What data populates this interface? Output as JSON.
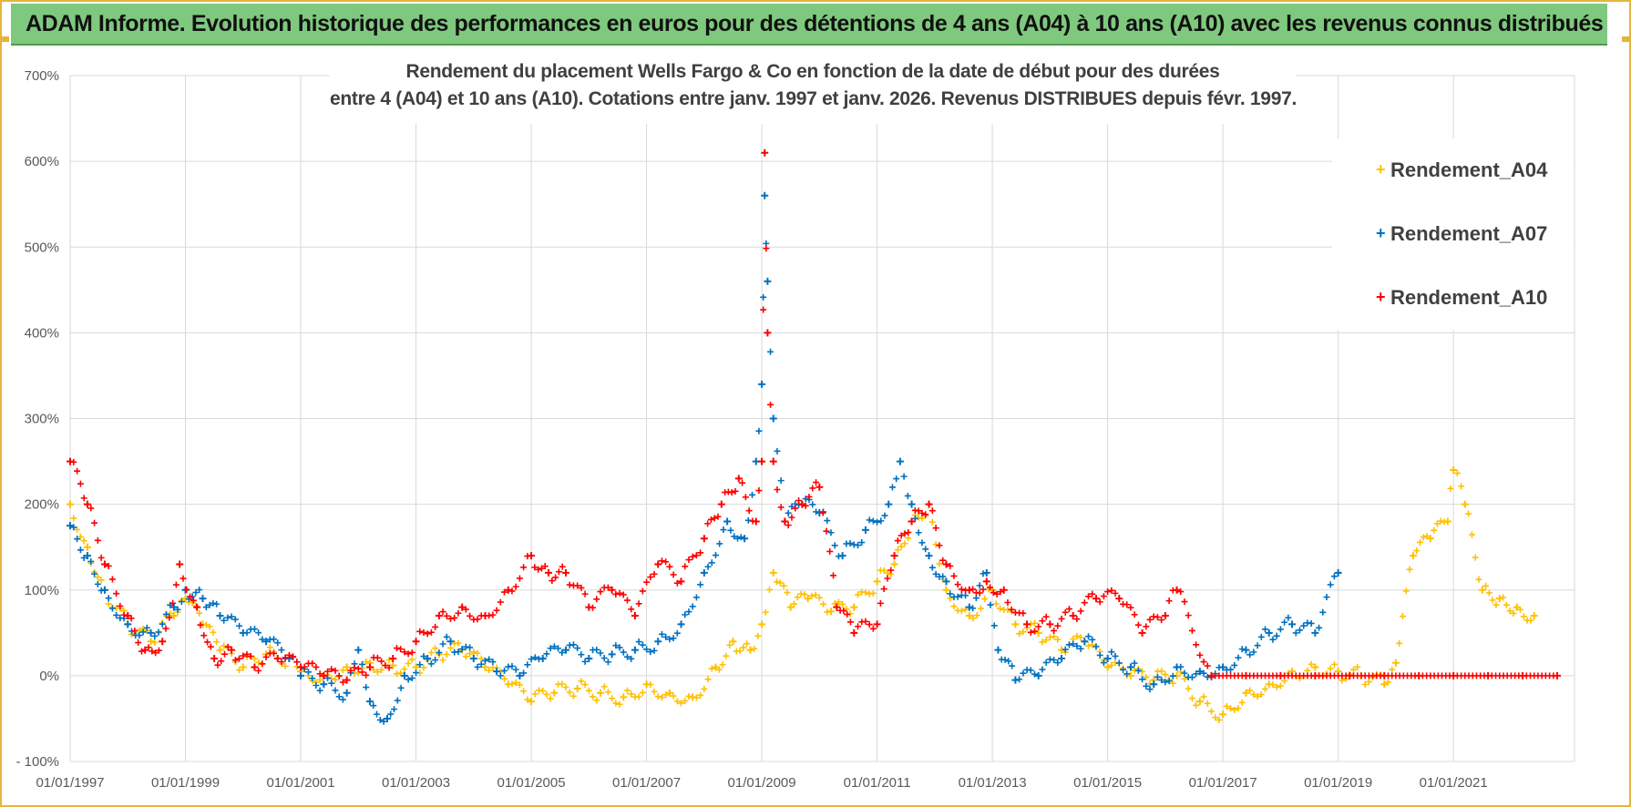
{
  "banner": {
    "title": "ADAM Informe. Evolution historique des performances en euros pour des détentions de 4 ans (A04) à 10 ans (A10) avec les revenus connus distribués"
  },
  "colors": {
    "banner_bg": "#7fc97f",
    "frame": "#e3b53c",
    "A04": "#ffc000",
    "A07": "#0070c0",
    "A10": "#ff0000"
  },
  "chart_data": {
    "type": "scatter",
    "title_line1": "Rendement du placement Wells Fargo & Co en fonction de la date de début pour des durées",
    "title_line2": "entre 4 (A04) et 10 ans (A10). Cotations entre janv. 1997 et janv. 2026. Revenus DISTRIBUES depuis févr. 1997.",
    "xlabel": "",
    "ylabel": "",
    "xlim": [
      1997,
      2023.1
    ],
    "ylim": [
      -100,
      700
    ],
    "ytick_values": [
      -100,
      0,
      100,
      200,
      300,
      400,
      500,
      600,
      700
    ],
    "ytick_labels": [
      "- 100%",
      "0%",
      "100%",
      "200%",
      "300%",
      "400%",
      "500%",
      "600%",
      "700%"
    ],
    "xtick_values": [
      1997,
      1999,
      2001,
      2003,
      2005,
      2007,
      2009,
      2011,
      2013,
      2015,
      2017,
      2019,
      2021
    ],
    "xtick_labels": [
      "01/01/1997",
      "01/01/1999",
      "01/01/2001",
      "01/01/2003",
      "01/01/2005",
      "01/01/2007",
      "01/01/2009",
      "01/01/2011",
      "01/01/2013",
      "01/01/2015",
      "01/01/2017",
      "01/01/2019",
      "01/01/2021"
    ],
    "grid": true,
    "legend_position": "top-right",
    "marker": "+",
    "series": [
      {
        "name": "Rendement_A04",
        "color": "#ffc000",
        "x": [
          1997.0,
          1997.3,
          1997.6,
          1998.0,
          1998.4,
          1998.8,
          1999.0,
          1999.3,
          1999.6,
          2000.0,
          2000.4,
          2000.8,
          2001.0,
          2001.4,
          2001.8,
          2002.2,
          2002.6,
          2003.0,
          2003.4,
          2003.8,
          2004.2,
          2004.6,
          2005.0,
          2005.4,
          2005.8,
          2006.2,
          2006.6,
          2007.0,
          2007.4,
          2007.8,
          2008.2,
          2008.5,
          2008.8,
          2009.0,
          2009.2,
          2009.5,
          2009.8,
          2010.2,
          2010.6,
          2011.0,
          2011.3,
          2011.6,
          2011.9,
          2012.2,
          2012.6,
          2013.0,
          2013.4,
          2013.8,
          2014.2,
          2014.6,
          2015.0,
          2015.4,
          2015.8,
          2016.2,
          2016.6,
          2017.0,
          2017.4,
          2017.8,
          2018.2,
          2018.6,
          2019.0,
          2019.4,
          2019.8,
          2020.0,
          2020.3,
          2020.6,
          2020.9,
          2021.0,
          2021.2,
          2021.5,
          2021.8,
          2022.1,
          2022.4
        ],
        "y": [
          200,
          150,
          100,
          60,
          40,
          70,
          90,
          60,
          30,
          10,
          25,
          20,
          5,
          0,
          10,
          15,
          12,
          10,
          25,
          30,
          10,
          -10,
          -30,
          -20,
          -15,
          -20,
          -25,
          -10,
          -20,
          -25,
          10,
          40,
          30,
          60,
          120,
          80,
          90,
          75,
          80,
          110,
          130,
          180,
          200,
          100,
          70,
          100,
          60,
          50,
          30,
          40,
          10,
          0,
          -5,
          0,
          -30,
          -45,
          -20,
          -10,
          5,
          10,
          5,
          0,
          -10,
          15,
          140,
          160,
          180,
          240,
          200,
          100,
          90,
          80,
          70
        ]
      },
      {
        "name": "Rendement_A07",
        "color": "#0070c0",
        "x": [
          1997.0,
          1997.3,
          1997.6,
          1998.0,
          1998.4,
          1998.8,
          1999.0,
          1999.3,
          1999.6,
          2000.0,
          2000.4,
          2000.8,
          2001.0,
          2001.4,
          2001.8,
          2002.0,
          2002.2,
          2002.5,
          2002.8,
          2003.2,
          2003.6,
          2004.0,
          2004.4,
          2004.8,
          2005.2,
          2005.6,
          2006.0,
          2006.4,
          2006.8,
          2007.2,
          2007.6,
          2008.0,
          2008.4,
          2008.7,
          2008.9,
          2009.0,
          2009.05,
          2009.1,
          2009.2,
          2009.4,
          2009.7,
          2010.0,
          2010.4,
          2010.8,
          2011.2,
          2011.4,
          2011.6,
          2011.9,
          2012.2,
          2012.6,
          2012.9,
          2013.1,
          2013.4,
          2013.8,
          2014.2,
          2014.6,
          2015.0,
          2015.4,
          2015.8,
          2016.2,
          2016.6,
          2017.0,
          2017.4,
          2017.8,
          2018.2,
          2018.6,
          2019.0
        ],
        "y": [
          175,
          140,
          100,
          60,
          50,
          80,
          100,
          90,
          70,
          50,
          40,
          20,
          0,
          -10,
          -20,
          30,
          -30,
          -50,
          0,
          20,
          40,
          20,
          5,
          0,
          20,
          30,
          20,
          25,
          30,
          40,
          60,
          120,
          180,
          160,
          250,
          340,
          560,
          460,
          300,
          180,
          200,
          190,
          140,
          170,
          200,
          250,
          200,
          140,
          110,
          80,
          120,
          30,
          -5,
          0,
          20,
          40,
          20,
          10,
          -10,
          10,
          5,
          10,
          30,
          50,
          60,
          50,
          120
        ]
      },
      {
        "name": "Rendement_A10",
        "color": "#ff0000",
        "x": [
          1997.0,
          1997.3,
          1997.6,
          1998.0,
          1998.3,
          1998.6,
          1998.9,
          1999.2,
          1999.5,
          1999.8,
          2000.2,
          2000.6,
          2001.0,
          2001.4,
          2001.8,
          2002.2,
          2002.6,
          2003.0,
          2003.4,
          2003.8,
          2004.2,
          2004.6,
          2005.0,
          2005.3,
          2005.6,
          2006.0,
          2006.4,
          2006.8,
          2007.2,
          2007.6,
          2008.0,
          2008.3,
          2008.6,
          2008.9,
          2009.0,
          2009.05,
          2009.1,
          2009.2,
          2009.4,
          2009.7,
          2010.0,
          2010.3,
          2010.6,
          2011.0,
          2011.3,
          2011.6,
          2011.9,
          2012.2,
          2012.6,
          2012.9,
          2013.2,
          2013.6,
          2014.0,
          2014.4,
          2014.8,
          2015.2,
          2015.6,
          2016.0,
          2016.2,
          2016.8,
          2017.4,
          2018.0,
          2018.6,
          2019.2,
          2019.8,
          2020.4,
          2021.0,
          2021.6,
          2022.2,
          2022.8
        ],
        "y": [
          250,
          200,
          130,
          70,
          30,
          40,
          130,
          80,
          20,
          30,
          10,
          20,
          10,
          0,
          -5,
          10,
          20,
          40,
          70,
          80,
          70,
          100,
          140,
          120,
          120,
          80,
          100,
          70,
          130,
          110,
          160,
          200,
          230,
          180,
          250,
          610,
          400,
          250,
          180,
          200,
          220,
          80,
          50,
          60,
          140,
          180,
          200,
          130,
          100,
          110,
          100,
          60,
          60,
          70,
          90,
          90,
          50,
          70,
          100,
          0,
          0,
          0,
          0,
          0,
          0,
          0,
          0,
          0,
          0,
          0
        ]
      }
    ]
  }
}
